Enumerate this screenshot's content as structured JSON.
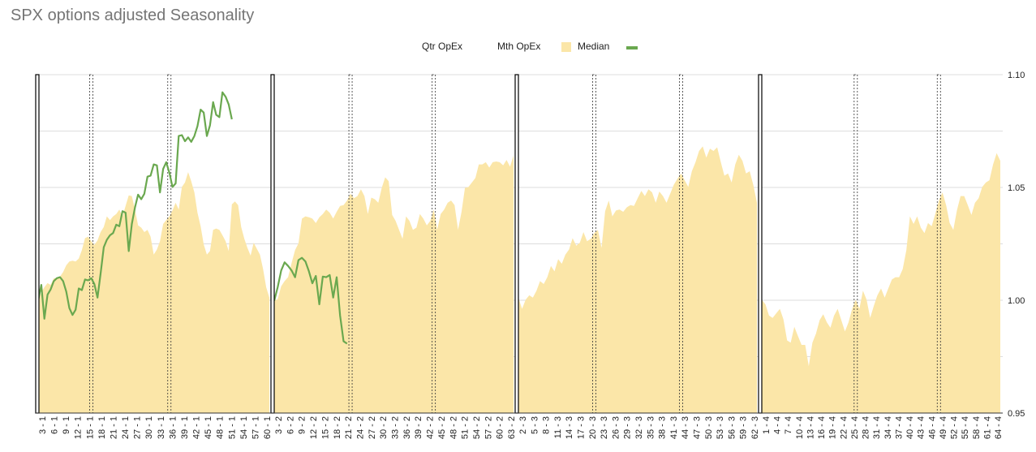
{
  "title": "SPX options adjusted Seasonality",
  "legend": [
    {
      "label": "Qtr OpEx",
      "type": "none"
    },
    {
      "label": "Mth OpEx",
      "type": "none"
    },
    {
      "label": "Median",
      "type": "area",
      "color": "#fbe6a8"
    },
    {
      "label": "",
      "type": "line",
      "color": "#6aa84f"
    }
  ],
  "chart_data": {
    "type": "area",
    "title": "SPX options adjusted Seasonality",
    "xlabel": "",
    "ylabel": "",
    "ylim": [
      0.95,
      1.1
    ],
    "y_ticks": [
      0.95,
      1.0,
      1.05,
      1.1
    ],
    "y_tick_labels": [
      "0.95",
      "1.00",
      "1.05",
      "1.10"
    ],
    "y_axis_side": "right",
    "grid": true,
    "legend_position": "top",
    "colors": {
      "median_area": "#fbe6a8",
      "current_line": "#6aa84f",
      "grid": "#dddddd"
    },
    "quarters": [
      {
        "x_labels": [
          "3 - 1",
          "6 - 1",
          "9 - 1",
          "12 - 1",
          "15 - 1",
          "18 - 1",
          "21 - 1",
          "24 - 1",
          "27 - 1",
          "30 - 1",
          "33 - 1",
          "36 - 1",
          "39 - 1",
          "42 - 1",
          "45 - 1",
          "48 - 1",
          "51 - 1",
          "54 - 1",
          "57 - 1",
          "60 - 1"
        ],
        "mth_opex_days": [
          17,
          42
        ],
        "median": [
          0.9998,
          1.0035,
          1.0058,
          1.0076,
          1.0068,
          1.0097,
          1.0098,
          1.0105,
          1.0125,
          1.0155,
          1.0172,
          1.0175,
          1.0172,
          1.0185,
          1.0222,
          1.0275,
          1.0282,
          1.0262,
          1.0245,
          1.0265,
          1.0302,
          1.0325,
          1.0372,
          1.0355,
          1.0372,
          1.0382,
          1.0402,
          1.0372,
          1.0418,
          1.0465,
          1.0462,
          1.0402,
          1.0332,
          1.0322,
          1.0302,
          1.0312,
          1.0282,
          1.0202,
          1.0225,
          1.0262,
          1.0338,
          1.0355,
          1.0372,
          1.0398,
          1.0432,
          1.0402,
          1.0502,
          1.0522,
          1.0568,
          1.0528,
          1.0478,
          1.0388,
          1.0328,
          1.0248,
          1.0202,
          1.0218,
          1.0312,
          1.0318,
          1.0312,
          1.0288,
          1.0262,
          1.0218,
          1.0425,
          1.0438,
          1.0422,
          1.0325,
          1.0272,
          1.0232,
          1.0198,
          1.0255,
          1.0228,
          1.0202,
          1.0138,
          1.0058,
          1.0012
        ],
        "current": [
          0.9998,
          1.0068,
          0.9918,
          1.0025,
          1.0048,
          1.0085,
          1.0098,
          1.0102,
          1.0085,
          1.0038,
          0.9965,
          0.9935,
          0.9958,
          1.0052,
          1.0045,
          1.0092,
          1.0088,
          1.0098,
          1.0072,
          1.0012,
          1.0118,
          1.0235,
          1.0268,
          1.0288,
          1.0298,
          1.0335,
          1.0328,
          1.0395,
          1.0388,
          1.0218,
          1.0338,
          1.0412,
          1.0468,
          1.0448,
          1.0472,
          1.0548,
          1.0552,
          1.0602,
          1.0598,
          1.0478,
          1.0582,
          1.0612,
          1.0565,
          1.0502,
          1.0518,
          1.0728,
          1.0732,
          1.0705,
          1.0722,
          1.0702,
          1.0728,
          1.0772,
          1.0845,
          1.0832,
          1.0728,
          1.0775,
          1.0878,
          1.0822,
          1.0812,
          1.0922,
          1.0902,
          1.0868,
          1.0802
        ]
      },
      {
        "x_labels": [
          "3 - 2",
          "6 - 2",
          "9 - 2",
          "12 - 2",
          "15 - 2",
          "18 - 2",
          "21 - 2",
          "24 - 2",
          "27 - 2",
          "30 - 2",
          "33 - 2",
          "36 - 2",
          "39 - 2",
          "42 - 2",
          "45 - 2",
          "48 - 2",
          "51 - 2",
          "54 - 2",
          "57 - 2",
          "60 - 2",
          "63 - 2"
        ],
        "mth_opex_days": [
          22,
          46
        ],
        "median": [
          0.9998,
          1.0005,
          1.0062,
          1.0085,
          1.0102,
          1.0165,
          1.0222,
          1.0252,
          1.0362,
          1.0372,
          1.0368,
          1.0362,
          1.0342,
          1.0368,
          1.0382,
          1.0402,
          1.0388,
          1.0362,
          1.0392,
          1.0418,
          1.0422,
          1.0442,
          1.0472,
          1.0452,
          1.0462,
          1.0492,
          1.0462,
          1.0382,
          1.0455,
          1.0448,
          1.0432,
          1.0498,
          1.0545,
          1.0528,
          1.0378,
          1.0352,
          1.0312,
          1.0272,
          1.0372,
          1.0352,
          1.0312,
          1.0322,
          1.0382,
          1.0362,
          1.0332,
          1.0352,
          1.0402,
          1.0312,
          1.0382,
          1.0402,
          1.0432,
          1.0442,
          1.0422,
          1.0312,
          1.0392,
          1.0498,
          1.0502,
          1.0522,
          1.0542,
          1.0602,
          1.0602,
          1.0612,
          1.0588,
          1.0612,
          1.0615,
          1.0612,
          1.0598,
          1.0622,
          1.0592,
          1.0642
        ],
        "current": [
          0.9998,
          1.0058,
          1.0132,
          1.0168,
          1.0152,
          1.0132,
          1.0102,
          1.0178,
          1.0188,
          1.0172,
          1.0128,
          1.0075,
          1.0108,
          0.9982,
          1.0105,
          1.0102,
          1.0112,
          1.0012,
          1.0102,
          0.9932,
          0.9818,
          0.9808
        ]
      },
      {
        "x_labels": [
          "2 - 3",
          "5 - 3",
          "8 - 3",
          "11 - 3",
          "14 - 3",
          "17 - 3",
          "20 - 3",
          "23 - 3",
          "26 - 3",
          "29 - 3",
          "32 - 3",
          "35 - 3",
          "38 - 3",
          "41 - 3",
          "44 - 3",
          "47 - 3",
          "50 - 3",
          "53 - 3",
          "56 - 3",
          "59 - 3",
          "62 - 3"
        ],
        "mth_opex_days": [
          21,
          45
        ],
        "median": [
          1.0012,
          0.9962,
          1.0002,
          1.0022,
          1.0012,
          1.0042,
          1.0085,
          1.0072,
          1.0102,
          1.0152,
          1.0128,
          1.0182,
          1.0162,
          1.0202,
          1.0225,
          1.0275,
          1.0242,
          1.0255,
          1.0302,
          1.0262,
          1.0272,
          1.0298,
          1.0312,
          1.0232,
          1.0395,
          1.0442,
          1.0372,
          1.0398,
          1.0402,
          1.0392,
          1.0412,
          1.0422,
          1.0418,
          1.0452,
          1.0485,
          1.0462,
          1.0492,
          1.0478,
          1.0432,
          1.0482,
          1.0462,
          1.0432,
          1.0472,
          1.0512,
          1.0538,
          1.0562,
          1.0532,
          1.0502,
          1.0572,
          1.0612,
          1.0662,
          1.0682,
          1.0632,
          1.0672,
          1.0662,
          1.0678,
          1.0612,
          1.0552,
          1.0562,
          1.0522,
          1.0602,
          1.0645,
          1.0618,
          1.0562,
          1.0572,
          1.0512,
          1.0432
        ]
      },
      {
        "x_labels": [
          "1 - 4",
          "4 - 4",
          "7 - 4",
          "10 - 4",
          "13 - 4",
          "16 - 4",
          "19 - 4",
          "22 - 4",
          "25 - 4",
          "28 - 4",
          "31 - 4",
          "34 - 4",
          "37 - 4",
          "40 - 4",
          "43 - 4",
          "46 - 4",
          "49 - 4",
          "52 - 4",
          "55 - 4",
          "58 - 4",
          "61 - 4",
          "64 - 4"
        ],
        "mth_opex_days": [
          26,
          49
        ],
        "median": [
          1.0002,
          0.9982,
          0.9932,
          0.9922,
          0.9942,
          0.9962,
          0.9915,
          0.9822,
          0.9812,
          0.9882,
          0.9842,
          0.9802,
          0.9802,
          0.9708,
          0.9812,
          0.9852,
          0.9912,
          0.9938,
          0.9902,
          0.9878,
          0.9932,
          0.9962,
          0.9912,
          0.9862,
          0.9902,
          0.9962,
          1.0002,
          0.9962,
          1.0042,
          1.0002,
          0.9922,
          0.9975,
          1.0022,
          1.0052,
          1.0012,
          1.0052,
          1.0092,
          1.0102,
          1.0102,
          1.0138,
          1.0222,
          1.0372,
          1.0338,
          1.0372,
          1.0322,
          1.0298,
          1.0342,
          1.0328,
          1.0382,
          1.0442,
          1.0478,
          1.0422,
          1.0342,
          1.0312,
          1.0398,
          1.0462,
          1.0462,
          1.0422,
          1.0378,
          1.0432,
          1.0452,
          1.0502,
          1.0522,
          1.0532,
          1.0602,
          1.0652,
          1.0618
        ]
      }
    ]
  }
}
